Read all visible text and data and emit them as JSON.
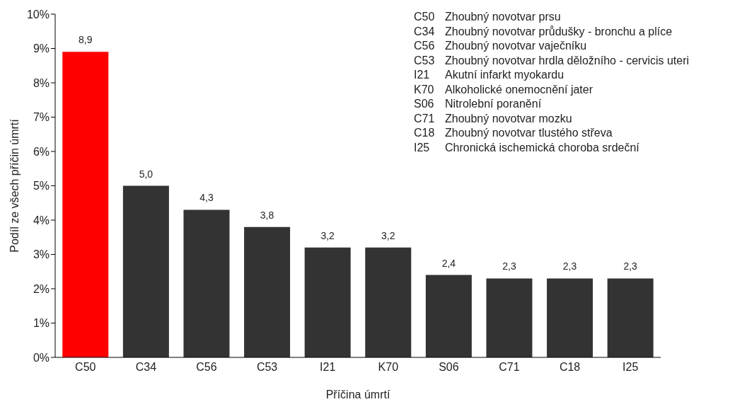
{
  "chart_data": {
    "type": "bar",
    "xlabel": "Příčina úmrtí",
    "ylabel": "Podíl ze všech příčin úmrtí",
    "categories": [
      "C50",
      "C34",
      "C56",
      "C53",
      "I21",
      "K70",
      "S06",
      "C71",
      "C18",
      "I25"
    ],
    "values": [
      8.9,
      5.0,
      4.3,
      3.8,
      3.2,
      3.2,
      2.4,
      2.3,
      2.3,
      2.3
    ],
    "colors": [
      "#ff0000",
      "#333333",
      "#333333",
      "#333333",
      "#333333",
      "#333333",
      "#333333",
      "#333333",
      "#333333",
      "#333333"
    ],
    "value_labels": [
      "8,9",
      "5,0",
      "4,3",
      "3,8",
      "3,2",
      "3,2",
      "2,4",
      "2,3",
      "2,3",
      "2,3"
    ],
    "ylim": [
      0,
      10
    ],
    "yticks": [
      {
        "value": 0,
        "label": "0%"
      },
      {
        "value": 1,
        "label": "1%"
      },
      {
        "value": 2,
        "label": "2%"
      },
      {
        "value": 3,
        "label": "3%"
      },
      {
        "value": 4,
        "label": "4%"
      },
      {
        "value": 5,
        "label": "5%"
      },
      {
        "value": 6,
        "label": "6%"
      },
      {
        "value": 7,
        "label": "7%"
      },
      {
        "value": 8,
        "label": "8%"
      },
      {
        "value": 9,
        "label": "9%"
      },
      {
        "value": 10,
        "label": "10%"
      }
    ],
    "grid": false,
    "legend": false,
    "annotations": [
      "C50 Zhoubný novotvar prsu",
      "C34 Zhoubný novotvar průdušky - bronchu a plíce",
      "C56 Zhoubný novotvar vaječníku",
      "C53 Zhoubný novotvar hrdla děložního - cervicis uteri",
      "I21 Akutní infarkt myokardu",
      "K70 Alkoholické onemocnění jater",
      "S06 Nitrolební poranění",
      "C71 Zhoubný novotvar mozku",
      "C18 Zhoubný novotvar tlustého střeva",
      "I25 Chronická ischemická choroba srdeční"
    ]
  }
}
